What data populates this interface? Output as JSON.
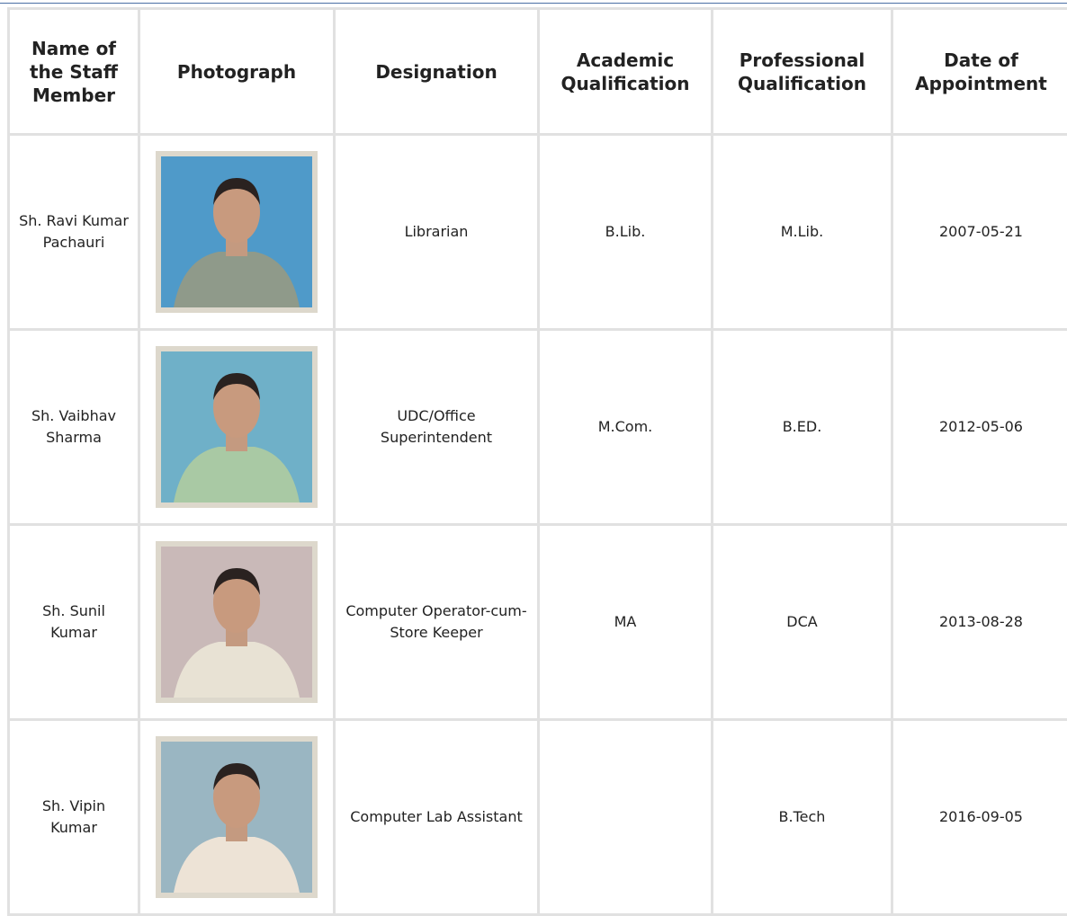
{
  "header": {
    "columns": [
      "Name of the Staff Member",
      "Photograph",
      "Designation",
      "Academic Qualification",
      "Professional Qualification",
      "Date of Appointment"
    ]
  },
  "table": {
    "rows": [
      {
        "name": "Sh. Ravi Kumar Pachauri",
        "designation": "Librarian",
        "academic": "B.Lib.",
        "professional": "M.Lib.",
        "date": "2007-05-21"
      },
      {
        "name": "Sh. Vaibhav Sharma",
        "designation": "UDC/Office Superintendent",
        "academic": "M.Com.",
        "professional": "B.ED.",
        "date": "2012-05-06"
      },
      {
        "name": "Sh. Sunil Kumar",
        "designation": "Computer Operator-cum-Store Keeper",
        "academic": "MA",
        "professional": "DCA",
        "date": "2013-08-28"
      },
      {
        "name": "Sh. Vipin Kumar",
        "designation": "Computer Lab Assistant",
        "professional": "B.Tech",
        "date": "2016-09-05"
      }
    ]
  }
}
